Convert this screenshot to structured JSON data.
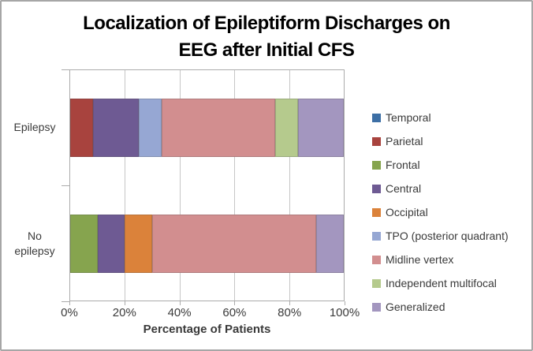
{
  "chart": {
    "title_line1": "Localization of Epileptiform Discharges on",
    "title_line2": "EEG after Initial CFS",
    "x_axis_title": "Percentage of Patients"
  },
  "chart_data": {
    "type": "bar",
    "orientation": "horizontal",
    "stacked": true,
    "title": "Localization of Epileptiform Discharges on EEG after Initial CFS",
    "xlabel": "Percentage of Patients",
    "ylabel": "",
    "xlim": [
      0,
      100
    ],
    "grid": true,
    "legend_position": "right",
    "categories": [
      "Epilepsy",
      "No epilepsy"
    ],
    "x_tick_values": [
      0,
      20,
      40,
      60,
      80,
      100
    ],
    "x_tick_labels": [
      "0%",
      "20%",
      "40%",
      "60%",
      "80%",
      "100%"
    ],
    "series": [
      {
        "name": "Temporal",
        "color": "#3D6FA5",
        "values": [
          0,
          0
        ]
      },
      {
        "name": "Parietal",
        "color": "#A8433E",
        "values": [
          8.33,
          0
        ]
      },
      {
        "name": "Frontal",
        "color": "#86A44E",
        "values": [
          0,
          10
        ]
      },
      {
        "name": "Central",
        "color": "#6E5A93",
        "values": [
          16.67,
          10
        ]
      },
      {
        "name": "Occipital",
        "color": "#DB823A",
        "values": [
          0,
          10
        ]
      },
      {
        "name": "TPO (posterior quadrant)",
        "color": "#96A7D3",
        "values": [
          8.33,
          0
        ]
      },
      {
        "name": "Midline vertex",
        "color": "#D28E8F",
        "values": [
          41.67,
          60
        ]
      },
      {
        "name": "Independent multifocal",
        "color": "#B5CA8D",
        "values": [
          8.33,
          0
        ]
      },
      {
        "name": "Generalized",
        "color": "#A396BF",
        "values": [
          16.67,
          10
        ]
      }
    ]
  },
  "colors": {
    "frame_border": "#A6A6A6",
    "axis": "#ABABAB",
    "gridline": "#C6C6C6",
    "text": "#3A3A3A",
    "title_text": "#000000"
  }
}
